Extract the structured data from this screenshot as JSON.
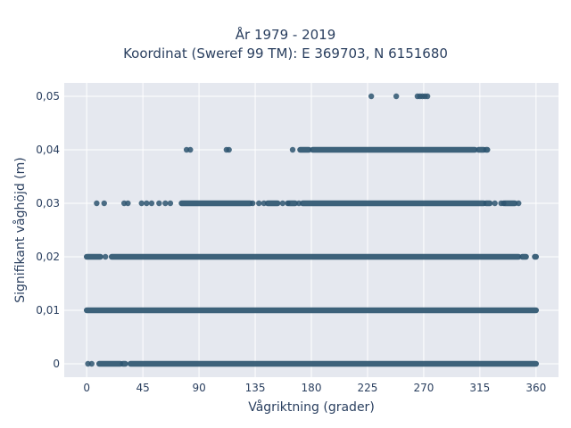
{
  "chart_data": {
    "type": "scatter",
    "title": [
      "År 1979 - 2019",
      "Koordinat (Sweref 99 TM): E 369703, N 6151680"
    ],
    "xlabel": "Vågriktning (grader)",
    "ylabel": "Signifikant våghöjd (m)",
    "xlim": [
      -18,
      378
    ],
    "ylim": [
      -0.0025,
      0.0525
    ],
    "x_ticks": [
      0,
      45,
      90,
      135,
      180,
      225,
      270,
      315,
      360
    ],
    "x_tick_labels": [
      "0",
      "45",
      "90",
      "135",
      "180",
      "225",
      "270",
      "315",
      "360"
    ],
    "y_ticks": [
      0,
      0.01,
      0.02,
      0.03,
      0.04,
      0.05
    ],
    "y_tick_labels": [
      "0",
      "0,01",
      "0,02",
      "0,03",
      "0,04",
      "0,05"
    ],
    "grid": true,
    "marker_color": "#2e5570",
    "background_color": "#e5e8ef",
    "series": [
      {
        "y": 0.05,
        "x": [
          228,
          248,
          265,
          267,
          269,
          271,
          273
        ]
      },
      {
        "y": 0.04,
        "x_points": [
          80,
          83,
          112,
          114,
          165
        ],
        "x_ranges": [
          [
            171,
            178
          ],
          [
            181,
            311
          ],
          [
            314,
            318
          ],
          [
            320,
            321
          ]
        ]
      },
      {
        "y": 0.03,
        "x_points": [
          8,
          14,
          30,
          33,
          44,
          48,
          52,
          58,
          63,
          67,
          133,
          138,
          142,
          157,
          161,
          170,
          327,
          332,
          334,
          346
        ],
        "x_ranges": [
          [
            76,
            131
          ],
          [
            145,
            153
          ],
          [
            162,
            167
          ],
          [
            173,
            318
          ],
          [
            320,
            323
          ],
          [
            335,
            343
          ]
        ]
      },
      {
        "y": 0.02,
        "x_points": [
          15
        ],
        "x_ranges": [
          [
            0,
            11
          ],
          [
            20,
            346
          ],
          [
            349,
            352
          ],
          [
            359,
            360
          ]
        ]
      },
      {
        "y": 0.01,
        "x_ranges": [
          [
            0,
            360
          ]
        ]
      },
      {
        "y": 0,
        "x_points": [
          1,
          4
        ],
        "x_ranges": [
          [
            10,
            27
          ],
          [
            29,
            31
          ],
          [
            35,
            360
          ]
        ]
      }
    ]
  }
}
